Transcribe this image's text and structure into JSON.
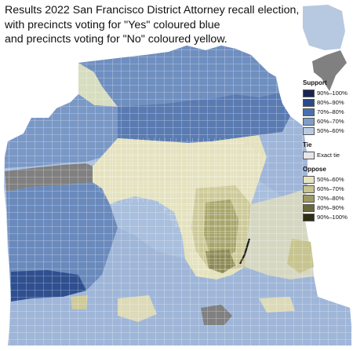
{
  "title": {
    "lines": [
      "Results 2022 San Francisco District Attorney recall election,",
      "with precincts voting for \"Yes\" coloured blue",
      "and precincts voting for \"No\" coloured yellow."
    ]
  },
  "legend": {
    "support_heading": "Support",
    "support": [
      {
        "label": "90%–100%",
        "color": "#1c2452"
      },
      {
        "label": "80%–90%",
        "color": "#2b4a8a"
      },
      {
        "label": "70%–80%",
        "color": "#4a6fae"
      },
      {
        "label": "60%–70%",
        "color": "#7e9dc9"
      },
      {
        "label": "50%–60%",
        "color": "#b9cbe3"
      }
    ],
    "tie_heading": "Tie",
    "tie": {
      "label": "Exact tie",
      "color": "#e6e6e6"
    },
    "oppose_heading": "Oppose",
    "oppose": [
      {
        "label": "50%–60%",
        "color": "#e6e4c2"
      },
      {
        "label": "60%–70%",
        "color": "#c6c38e"
      },
      {
        "label": "70%–80%",
        "color": "#9c9a62"
      },
      {
        "label": "80%–90%",
        "color": "#69683a"
      },
      {
        "label": "90%–100%",
        "color": "#2e2e17"
      }
    ],
    "no_data_color": "#808080"
  }
}
